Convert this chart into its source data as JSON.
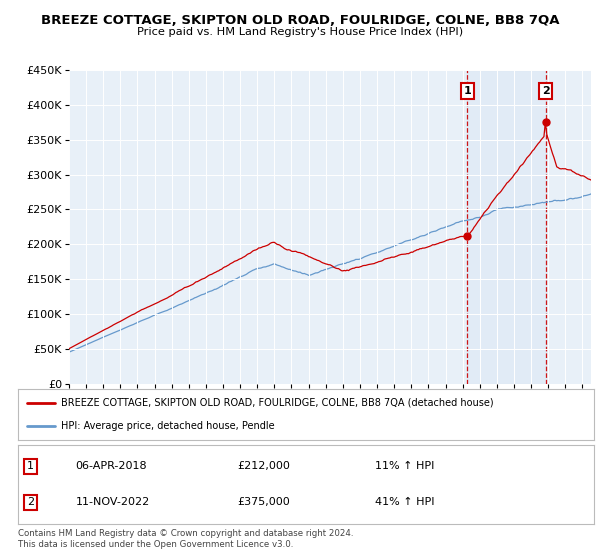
{
  "title": "BREEZE COTTAGE, SKIPTON OLD ROAD, FOULRIDGE, COLNE, BB8 7QA",
  "subtitle": "Price paid vs. HM Land Registry's House Price Index (HPI)",
  "legend_line1": "BREEZE COTTAGE, SKIPTON OLD ROAD, FOULRIDGE, COLNE, BB8 7QA (detached house)",
  "legend_line2": "HPI: Average price, detached house, Pendle",
  "annotation1_date": "06-APR-2018",
  "annotation1_price": "£212,000",
  "annotation1_hpi": "11% ↑ HPI",
  "annotation2_date": "11-NOV-2022",
  "annotation2_price": "£375,000",
  "annotation2_hpi": "41% ↑ HPI",
  "footer": "Contains HM Land Registry data © Crown copyright and database right 2024.\nThis data is licensed under the Open Government Licence v3.0.",
  "sale1_year": 2018.27,
  "sale1_price": 212000,
  "sale2_year": 2022.86,
  "sale2_price": 375000,
  "red_color": "#cc0000",
  "blue_color": "#6699cc",
  "shade_color": "#dce8f5",
  "background_color": "#e8f0f8",
  "ylim_max": 450000,
  "yticks": [
    0,
    50000,
    100000,
    150000,
    200000,
    250000,
    300000,
    350000,
    400000,
    450000
  ],
  "xlim_start": 1995,
  "xlim_end": 2025.5
}
